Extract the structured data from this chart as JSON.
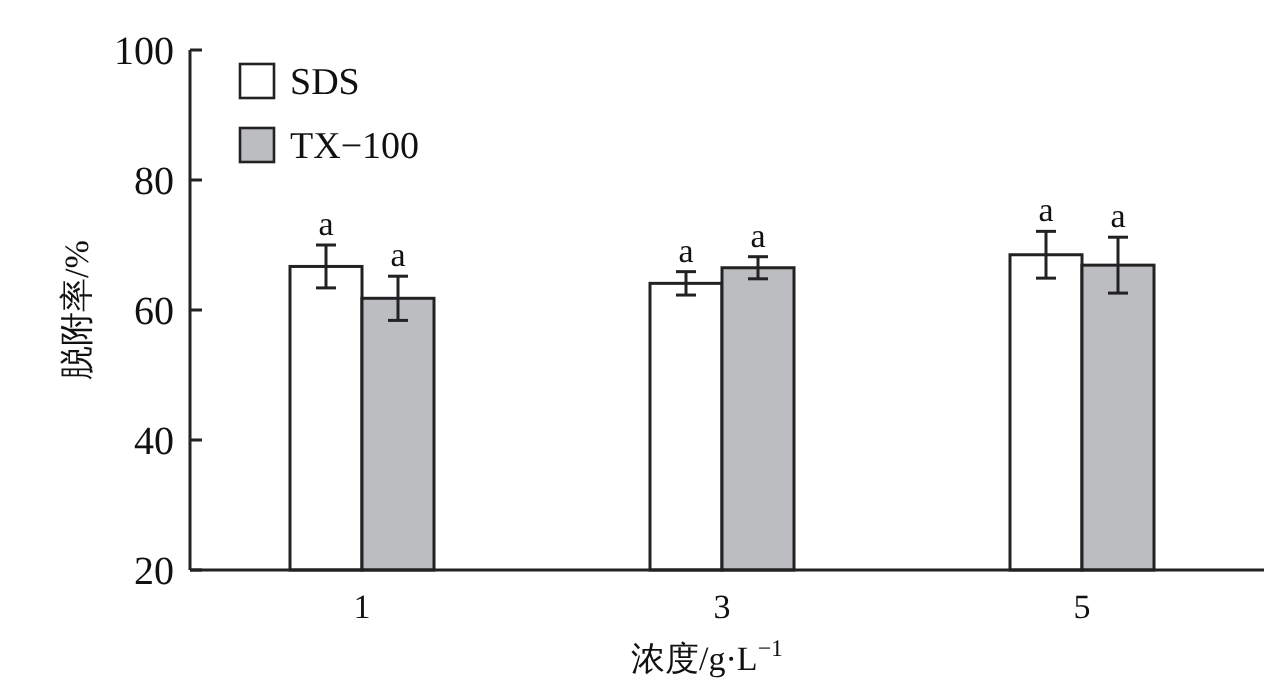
{
  "chart_data": {
    "type": "bar",
    "ylabel": "脱附率/%",
    "xlabel": "浓度/g·L$^{−1}$",
    "categories": [
      "1",
      "3",
      "5"
    ],
    "series": [
      {
        "name": "SDS",
        "color": "#ffffff",
        "values": [
          66.7,
          64.1,
          68.5
        ],
        "errors": [
          3.3,
          1.8,
          3.6
        ]
      },
      {
        "name": "TX−100",
        "color": "#bcbdc1",
        "values": [
          61.8,
          66.5,
          66.9
        ],
        "errors": [
          3.4,
          1.7,
          4.3
        ]
      }
    ],
    "ylim": [
      20,
      100
    ],
    "yticks": [
      20,
      40,
      60,
      80,
      100
    ],
    "legend": "top left",
    "grid": false,
    "annotations": [
      {
        "text": "a",
        "x": "1",
        "y": 66.7
      },
      {
        "text": "a",
        "x": "1",
        "y": 61.8
      },
      {
        "text": "a",
        "x": "3",
        "y": 64.1
      },
      {
        "text": "a",
        "x": "3",
        "y": 66.5
      },
      {
        "text": "a",
        "x": "5",
        "y": 68.5
      },
      {
        "text": "a",
        "x": "5",
        "y": 66.9
      }
    ]
  }
}
